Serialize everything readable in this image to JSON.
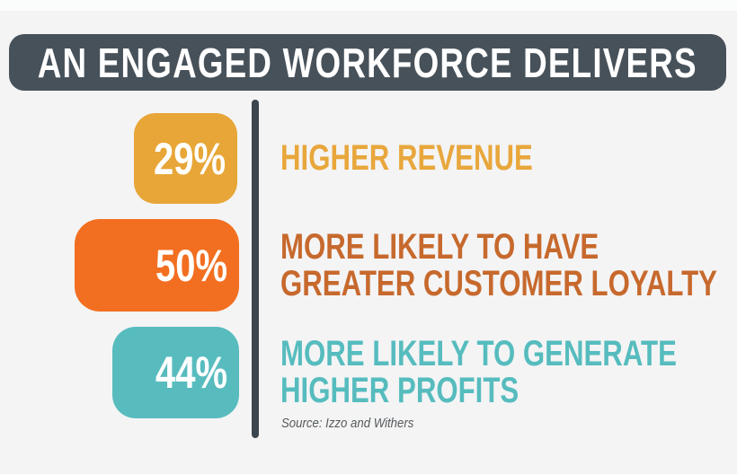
{
  "page": {
    "background_color": "#f4f4f5",
    "top_strip_color": "#fbfcfc",
    "divider_color": "#3c464e"
  },
  "header": {
    "title": "AN ENGAGED WORKFORCE DELIVERS",
    "bg_color": "#47515a",
    "text_color": "#ffffff"
  },
  "stats": [
    {
      "value": "29%",
      "badge_color": "#e7a637",
      "label_color": "#e8a73c",
      "label_lines": [
        "HIGHER REVENUE"
      ]
    },
    {
      "value": "50%",
      "badge_color": "#f26f21",
      "label_color": "#c7692d",
      "label_lines": [
        "MORE LIKELY TO HAVE",
        "GREATER CUSTOMER LOYALTY"
      ]
    },
    {
      "value": "44%",
      "badge_color": "#58bcbe",
      "label_color": "#56bcbe",
      "label_lines": [
        "MORE LIKELY TO GENERATE",
        "HIGHER PROFITS"
      ]
    }
  ],
  "source_note": "Source: Izzo and Withers",
  "chart_data": {
    "type": "bar",
    "orientation": "horizontal",
    "title": "AN ENGAGED WORKFORCE DELIVERS",
    "categories": [
      "Higher revenue",
      "More likely to have greater customer loyalty",
      "More likely to generate higher profits"
    ],
    "values": [
      29,
      50,
      44
    ],
    "unit": "%",
    "series_colors": [
      "#e7a637",
      "#f26f21",
      "#58bcbe"
    ],
    "source": "Source: Izzo and Withers"
  }
}
